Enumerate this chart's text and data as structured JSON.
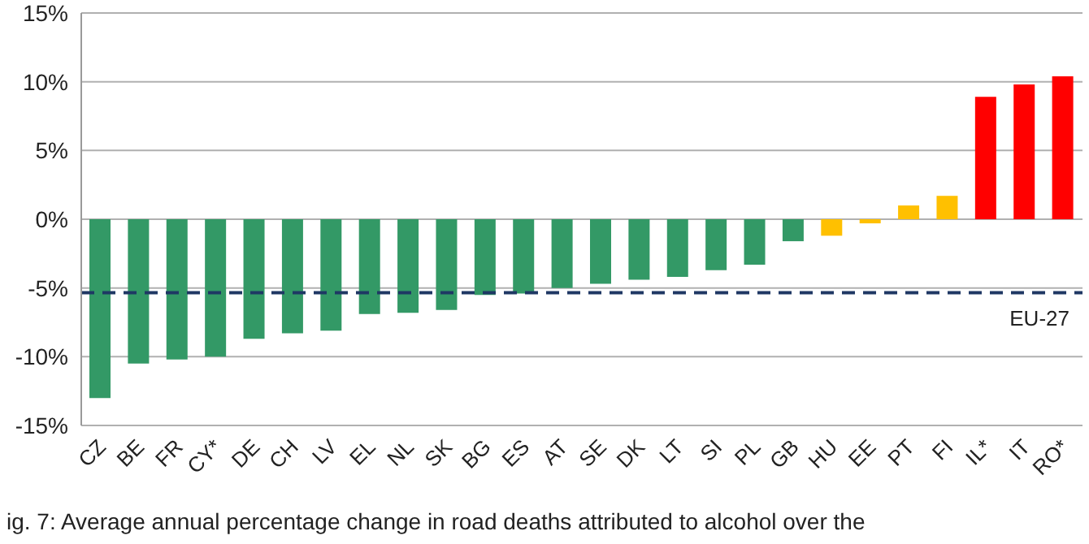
{
  "chart_data": {
    "type": "bar",
    "categories": [
      "CZ",
      "BE",
      "FR",
      "CY*",
      "DE",
      "CH",
      "LV",
      "EL",
      "NL",
      "SK",
      "BG",
      "ES",
      "AT",
      "SE",
      "DK",
      "LT",
      "SI",
      "PL",
      "GB",
      "HU",
      "EE",
      "PT",
      "FI",
      "IL*",
      "IT",
      "RO*"
    ],
    "values": [
      -13.0,
      -10.5,
      -10.2,
      -10.0,
      -8.7,
      -8.3,
      -8.1,
      -6.9,
      -6.8,
      -6.6,
      -5.5,
      -5.4,
      -5.0,
      -4.7,
      -4.4,
      -4.2,
      -3.7,
      -3.3,
      -1.6,
      -1.2,
      -0.3,
      1.0,
      1.7,
      8.9,
      9.8,
      10.4
    ],
    "colors": [
      "#339966",
      "#339966",
      "#339966",
      "#339966",
      "#339966",
      "#339966",
      "#339966",
      "#339966",
      "#339966",
      "#339966",
      "#339966",
      "#339966",
      "#339966",
      "#339966",
      "#339966",
      "#339966",
      "#339966",
      "#339966",
      "#339966",
      "#ffc000",
      "#ffc000",
      "#ffc000",
      "#ffc000",
      "#ff0000",
      "#ff0000",
      "#ff0000"
    ],
    "ylim": [
      -15,
      15
    ],
    "yticks": [
      {
        "value": -15,
        "label": "-15%"
      },
      {
        "value": -10,
        "label": "-10%"
      },
      {
        "value": -5,
        "label": "-5%"
      },
      {
        "value": 0,
        "label": "0%"
      },
      {
        "value": 5,
        "label": "5%"
      },
      {
        "value": 10,
        "label": "10%"
      },
      {
        "value": 15,
        "label": "15%"
      }
    ],
    "grid": "y",
    "legend": false,
    "ref_lines": [
      {
        "axis": "y",
        "value": -5.35,
        "label": "EU-27",
        "color": "#1f3864",
        "line_style": "dashed"
      }
    ],
    "annotations": [
      "ig. 7: Average annual percentage change in road deaths attributed to alcohol over the"
    ]
  }
}
